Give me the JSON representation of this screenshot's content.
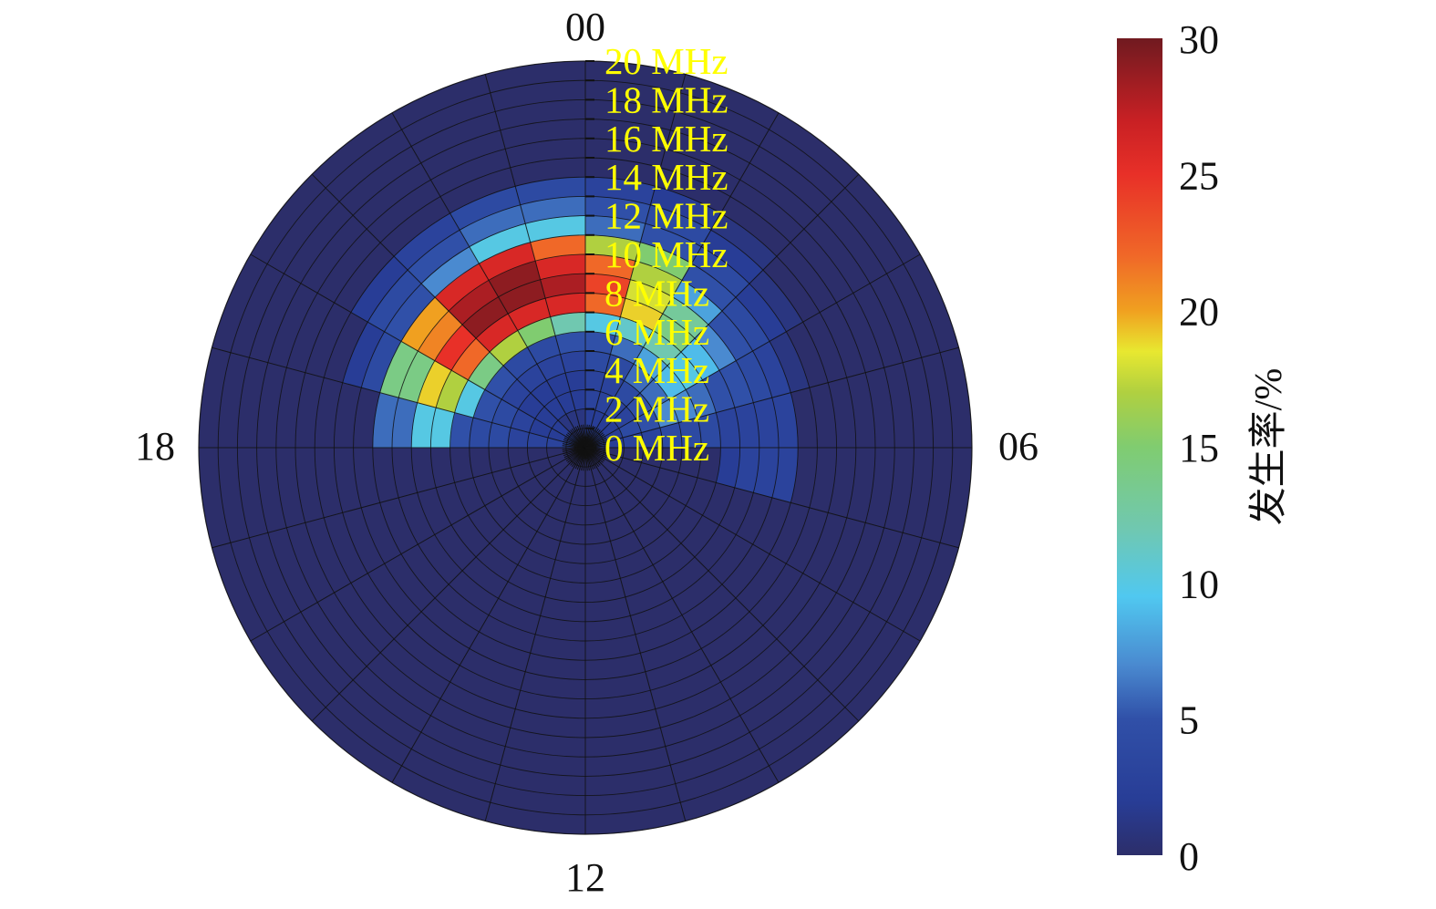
{
  "chart_data": {
    "type": "heatmap",
    "subtype": "polar",
    "angular_axis": {
      "unit": "hour (LT)",
      "direction": "clockwise",
      "zero": "top",
      "bins": 24,
      "tick_labels": [
        {
          "hour": 0,
          "label": "00"
        },
        {
          "hour": 6,
          "label": "06"
        },
        {
          "hour": 12,
          "label": "12"
        },
        {
          "hour": 18,
          "label": "18"
        }
      ]
    },
    "radial_axis": {
      "unit": "MHz",
      "range": [
        0,
        20
      ],
      "bin_width": 1,
      "tick_labels": [
        {
          "value": 0,
          "label": "0 MHz"
        },
        {
          "value": 2,
          "label": "2 MHz"
        },
        {
          "value": 4,
          "label": "4 MHz"
        },
        {
          "value": 6,
          "label": "6 MHz"
        },
        {
          "value": 8,
          "label": "8 MHz"
        },
        {
          "value": 10,
          "label": "10 MHz"
        },
        {
          "value": 12,
          "label": "12 MHz"
        },
        {
          "value": 14,
          "label": "14 MHz"
        },
        {
          "value": 16,
          "label": "16 MHz"
        },
        {
          "value": 18,
          "label": "18 MHz"
        },
        {
          "value": 20,
          "label": "20 MHz"
        }
      ]
    },
    "colorbar": {
      "label": "发生率/%",
      "range": [
        0,
        30
      ],
      "ticks": [
        "0",
        "5",
        "10",
        "15",
        "20",
        "25",
        "30"
      ],
      "colormap": [
        [
          0,
          "#2c2e6a"
        ],
        [
          2,
          "#283d96"
        ],
        [
          5,
          "#3050a8"
        ],
        [
          7,
          "#4a8ad0"
        ],
        [
          9.5,
          "#50c8f0"
        ],
        [
          12,
          "#70c8b0"
        ],
        [
          15,
          "#80cc70"
        ],
        [
          17,
          "#b0d040"
        ],
        [
          18.5,
          "#e8e830"
        ],
        [
          20,
          "#f0a020"
        ],
        [
          22,
          "#f06828"
        ],
        [
          25,
          "#e83028"
        ],
        [
          27,
          "#c82024"
        ],
        [
          30,
          "#701a20"
        ]
      ]
    },
    "values_note": "rows = hour 0..23, columns = frequency bins 0-1 .. 19-20 MHz, occurrence %",
    "values": [
      [
        2,
        2,
        3,
        3,
        4,
        5,
        10,
        22,
        24,
        22,
        17,
        6,
        5,
        3,
        0,
        0,
        0,
        0,
        0,
        0
      ],
      [
        2,
        2,
        3,
        3,
        4,
        6,
        11,
        19,
        18,
        17,
        15,
        5,
        4,
        2,
        0,
        0,
        0,
        0,
        0,
        0
      ],
      [
        2,
        2,
        3,
        4,
        6,
        8,
        12,
        14,
        13,
        8,
        5,
        4,
        2,
        1,
        0,
        0,
        0,
        0,
        0,
        0
      ],
      [
        2,
        2,
        3,
        5,
        6,
        9,
        10,
        9,
        7,
        5,
        4,
        2,
        1,
        0,
        0,
        0,
        0,
        0,
        0,
        0
      ],
      [
        2,
        2,
        4,
        5,
        7,
        7,
        6,
        5,
        5,
        4,
        3,
        1,
        0,
        0,
        0,
        0,
        0,
        0,
        0,
        0
      ],
      [
        2,
        2,
        3,
        3,
        4,
        4,
        4,
        3,
        3,
        3,
        3,
        0,
        0,
        0,
        0,
        0,
        0,
        0,
        0,
        0
      ],
      [
        0,
        0,
        0,
        0,
        0,
        0,
        0,
        2,
        3,
        3,
        3,
        0,
        0,
        0,
        0,
        0,
        0,
        0,
        0,
        0
      ],
      [
        0,
        0,
        0,
        0,
        0,
        0,
        0,
        0,
        0,
        0,
        0,
        0,
        0,
        0,
        0,
        0,
        0,
        0,
        0,
        0
      ],
      [
        0,
        0,
        0,
        0,
        0,
        0,
        0,
        0,
        0,
        0,
        0,
        0,
        0,
        0,
        0,
        0,
        0,
        0,
        0,
        0
      ],
      [
        0,
        0,
        0,
        0,
        0,
        0,
        0,
        0,
        0,
        0,
        0,
        0,
        0,
        0,
        0,
        0,
        0,
        0,
        0,
        0
      ],
      [
        0,
        0,
        0,
        0,
        0,
        0,
        0,
        0,
        0,
        0,
        0,
        0,
        0,
        0,
        0,
        0,
        0,
        0,
        0,
        0
      ],
      [
        0,
        0,
        0,
        0,
        0,
        0,
        0,
        0,
        0,
        0,
        0,
        0,
        0,
        0,
        0,
        0,
        0,
        0,
        0,
        0
      ],
      [
        0,
        0,
        0,
        0,
        0,
        0,
        0,
        0,
        0,
        0,
        0,
        0,
        0,
        0,
        0,
        0,
        0,
        0,
        0,
        0
      ],
      [
        0,
        0,
        0,
        0,
        0,
        0,
        0,
        0,
        0,
        0,
        0,
        0,
        0,
        0,
        0,
        0,
        0,
        0,
        0,
        0
      ],
      [
        0,
        0,
        0,
        0,
        0,
        0,
        0,
        0,
        0,
        0,
        0,
        0,
        0,
        0,
        0,
        0,
        0,
        0,
        0,
        0
      ],
      [
        0,
        0,
        0,
        0,
        0,
        0,
        0,
        0,
        0,
        0,
        0,
        0,
        0,
        0,
        0,
        0,
        0,
        0,
        0,
        0
      ],
      [
        0,
        0,
        0,
        0,
        0,
        0,
        0,
        0,
        0,
        0,
        0,
        0,
        0,
        0,
        0,
        0,
        0,
        0,
        0,
        0
      ],
      [
        0,
        0,
        0,
        0,
        0,
        0,
        0,
        0,
        0,
        0,
        0,
        0,
        0,
        0,
        0,
        0,
        0,
        0,
        0,
        0
      ],
      [
        3,
        3,
        3,
        3,
        4,
        4,
        5,
        10,
        10,
        6,
        6,
        0,
        0,
        0,
        0,
        0,
        0,
        0,
        0,
        0
      ],
      [
        2,
        2,
        2,
        3,
        4,
        5,
        10,
        17,
        19,
        14,
        14,
        4,
        2,
        0,
        0,
        0,
        0,
        0,
        0,
        0
      ],
      [
        2,
        2,
        2,
        2,
        3,
        5,
        14,
        22,
        25,
        21,
        20,
        5,
        4,
        2,
        0,
        0,
        0,
        0,
        0,
        0
      ],
      [
        1,
        1,
        2,
        2,
        3,
        4,
        17,
        26,
        29,
        28,
        26,
        7,
        5,
        3,
        0,
        0,
        0,
        0,
        0,
        0
      ],
      [
        1,
        1,
        2,
        2,
        3,
        4,
        15,
        26,
        29,
        29,
        26,
        10,
        6,
        4,
        0,
        0,
        0,
        0,
        0,
        0
      ],
      [
        1,
        1,
        2,
        2,
        3,
        5,
        12,
        26,
        28,
        26,
        22,
        10,
        6,
        4,
        0,
        0,
        0,
        0,
        0,
        0
      ]
    ]
  }
}
